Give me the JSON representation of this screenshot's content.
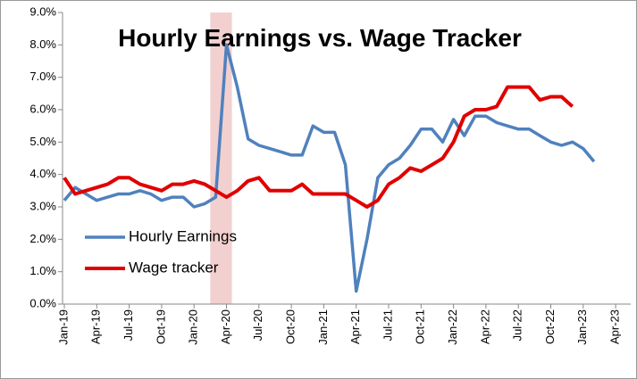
{
  "chart_data": {
    "type": "line",
    "title": "Hourly Earnings vs. Wage Tracker",
    "categories": [
      "Jan-19",
      null,
      null,
      "Apr-19",
      null,
      null,
      "Jul-19",
      null,
      null,
      "Oct-19",
      null,
      null,
      "Jan-20",
      null,
      null,
      "Apr-20",
      null,
      null,
      "Jul-20",
      null,
      null,
      "Oct-20",
      null,
      null,
      "Jan-21",
      null,
      null,
      "Apr-21",
      null,
      null,
      "Jul-21",
      null,
      null,
      "Oct-21",
      null,
      null,
      "Jan-22",
      null,
      null,
      "Apr-22",
      null,
      null,
      "Jul-22",
      null,
      null,
      "Oct-22",
      null,
      null,
      "Jan-23",
      null,
      null,
      "Apr-23"
    ],
    "series": [
      {
        "name": "Hourly Earnings",
        "color": "#4f81bd",
        "values": [
          3.2,
          3.6,
          3.4,
          3.2,
          3.3,
          3.4,
          3.4,
          3.5,
          3.4,
          3.2,
          3.3,
          3.3,
          3.0,
          3.1,
          3.3,
          8.0,
          6.7,
          5.1,
          4.9,
          4.8,
          4.7,
          4.6,
          4.6,
          5.5,
          5.3,
          5.3,
          4.3,
          0.4,
          2.0,
          3.9,
          4.3,
          4.5,
          4.9,
          5.4,
          5.4,
          5.0,
          5.7,
          5.2,
          5.8,
          5.8,
          5.6,
          5.5,
          5.4,
          5.4,
          5.2,
          5.0,
          4.9,
          5.0,
          4.8,
          4.4,
          null,
          null
        ]
      },
      {
        "name": "Wage tracker",
        "color": "#e00000",
        "values": [
          3.9,
          3.4,
          3.5,
          3.6,
          3.7,
          3.9,
          3.9,
          3.7,
          3.6,
          3.5,
          3.7,
          3.7,
          3.8,
          3.7,
          3.5,
          3.3,
          3.5,
          3.8,
          3.9,
          3.5,
          3.5,
          3.5,
          3.7,
          3.4,
          3.4,
          3.4,
          3.4,
          3.2,
          3.0,
          3.2,
          3.7,
          3.9,
          4.2,
          4.1,
          4.3,
          4.5,
          5.0,
          5.8,
          6.0,
          6.0,
          6.1,
          6.7,
          6.7,
          6.7,
          6.3,
          6.4,
          6.4,
          6.1,
          null,
          null,
          null,
          null
        ]
      }
    ],
    "ylim": [
      0,
      9
    ],
    "yticks": [
      {
        "value": 0,
        "label": "0.0%"
      },
      {
        "value": 1,
        "label": "1.0%"
      },
      {
        "value": 2,
        "label": "2.0%"
      },
      {
        "value": 3,
        "label": "3.0%"
      },
      {
        "value": 4,
        "label": "4.0%"
      },
      {
        "value": 5,
        "label": "5.0%"
      },
      {
        "value": 6,
        "label": "6.0%"
      },
      {
        "value": 7,
        "label": "7.0%"
      },
      {
        "value": 8,
        "label": "8.0%"
      },
      {
        "value": 9,
        "label": "9.0%"
      }
    ],
    "highlight_categories": [
      15,
      16
    ],
    "highlight_color": "#f2d0cf",
    "legend": "lower left",
    "grid": false
  }
}
